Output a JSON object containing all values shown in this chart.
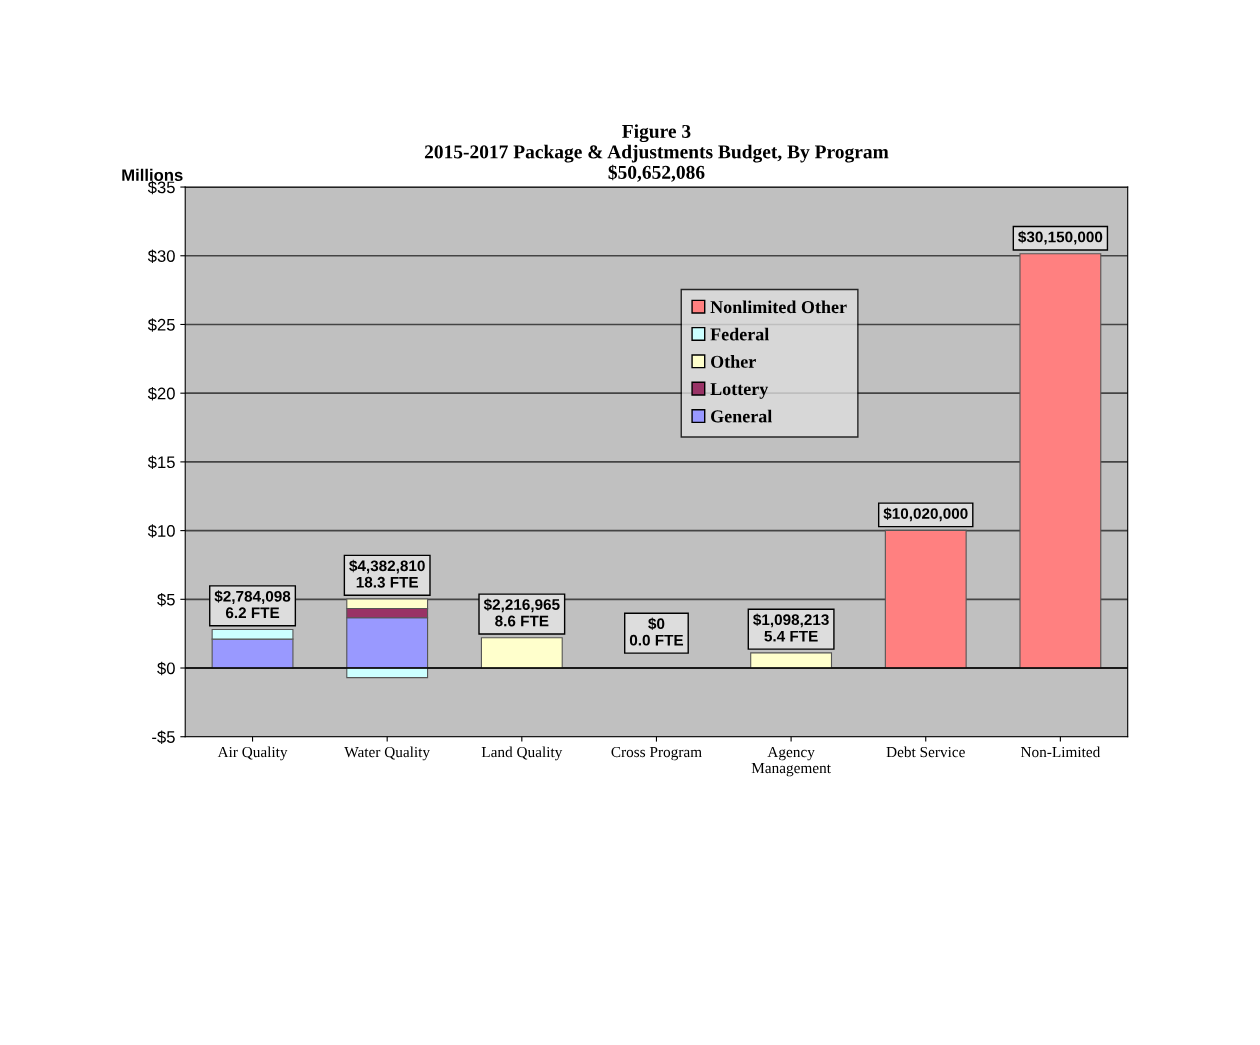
{
  "chart_data": {
    "type": "bar",
    "stacked": true,
    "title": "Figure 3\n2015-2017 Package & Adjustments Budget, By Program\n$50,652,086",
    "ylabel": "Millions",
    "categories": [
      "Air Quality",
      "Water Quality",
      "Land Quality",
      "Cross Program",
      "Agency Management",
      "Debt Service",
      "Non-Limited"
    ],
    "series": [
      {
        "name": "General",
        "color": "#9999ff",
        "values": [
          2.1,
          3.66,
          0,
          0,
          0,
          0,
          0
        ]
      },
      {
        "name": "Lottery",
        "color": "#993366",
        "values": [
          0,
          0.67,
          0,
          0,
          0,
          0,
          0
        ]
      },
      {
        "name": "Other",
        "color": "#ffffcc",
        "values": [
          0,
          0.69,
          2.2,
          0,
          1.1,
          0,
          0
        ]
      },
      {
        "name": "Federal",
        "color": "#ccffff",
        "values": [
          0.7,
          -0.7,
          0,
          0,
          0,
          0,
          0
        ]
      },
      {
        "name": "Nonlimited Other",
        "color": "#ff8080",
        "values": [
          0,
          0,
          0,
          0,
          0,
          10.02,
          30.15
        ]
      }
    ],
    "totals": [
      "$2,784,098\n6.2 FTE",
      "$4,382,810\n18.3 FTE",
      "$2,216,965\n8.6 FTE",
      "$0\n0.0 FTE",
      "$1,098,213\n5.4 FTE",
      "$10,020,000",
      "$30,150,000"
    ],
    "ylim": [
      -5,
      35
    ],
    "yticks": [
      {
        "value": -5,
        "label": "-$5"
      },
      {
        "value": 0,
        "label": "$0"
      },
      {
        "value": 5,
        "label": "$5"
      },
      {
        "value": 10,
        "label": "$10"
      },
      {
        "value": 15,
        "label": "$15"
      },
      {
        "value": 20,
        "label": "$20"
      },
      {
        "value": 25,
        "label": "$25"
      },
      {
        "value": 30,
        "label": "$30"
      },
      {
        "value": 35,
        "label": "$35"
      }
    ],
    "grid": "y",
    "legend": "top"
  }
}
